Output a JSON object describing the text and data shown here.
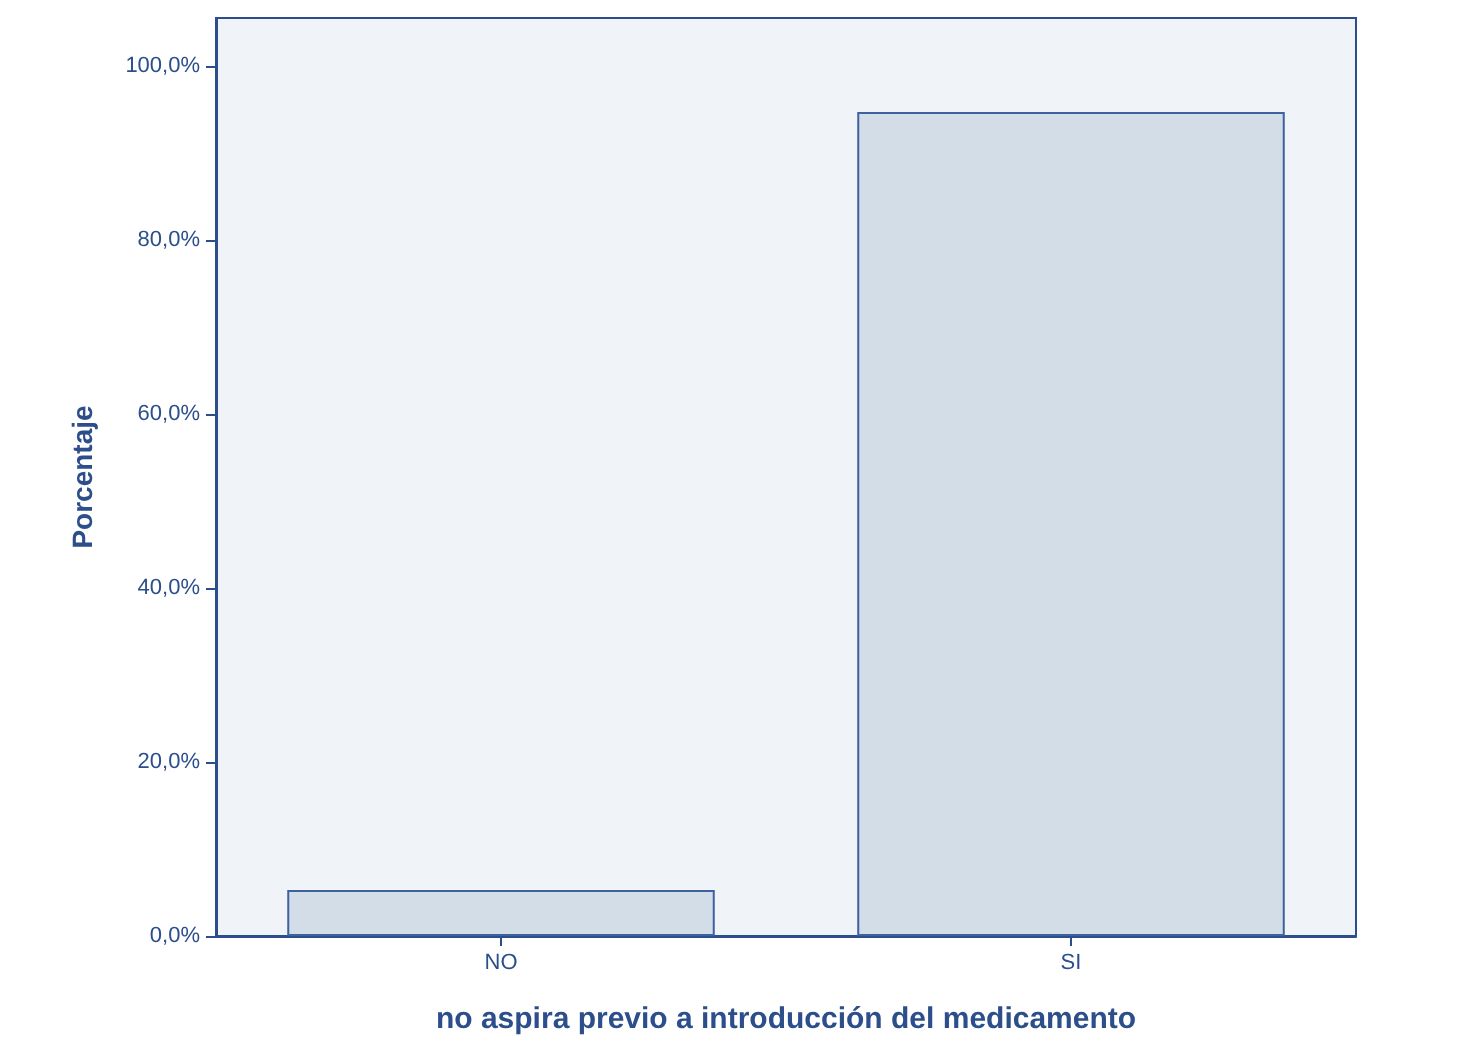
{
  "chart_data": {
    "type": "bar",
    "xlabel": "no aspira previo a introducción del medicamento",
    "ylabel": "Porcentaje",
    "categories": [
      "NO",
      "SI"
    ],
    "values": [
      5.3,
      94.7
    ],
    "color": "#d3dde8",
    "ylim": [
      0,
      105.5
    ],
    "yticks": [
      {
        "value": 0,
        "label": "0,0%"
      },
      {
        "value": 20,
        "label": "20,0%"
      },
      {
        "value": 40,
        "label": "40,0%"
      },
      {
        "value": 60,
        "label": "60,0%"
      },
      {
        "value": 80,
        "label": "80,0%"
      },
      {
        "value": 100,
        "label": "100,0%"
      }
    ],
    "grid": false
  }
}
